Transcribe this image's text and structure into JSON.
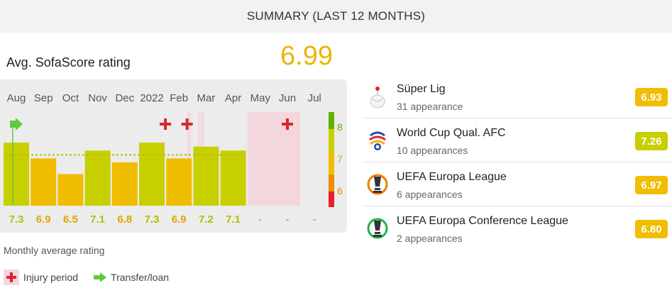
{
  "header": {
    "title": "SUMMARY (LAST 12 MONTHS)"
  },
  "summary": {
    "avg_label": "Avg. SofaScore rating",
    "avg_value": "6.99"
  },
  "chart_data": {
    "type": "bar",
    "categories": [
      "Aug",
      "Sep",
      "Oct",
      "Nov",
      "Dec",
      "2022",
      "Feb",
      "Mar",
      "Apr",
      "May",
      "Jun",
      "Jul"
    ],
    "values": [
      7.3,
      6.9,
      6.5,
      7.1,
      6.8,
      7.3,
      6.9,
      7.2,
      7.1,
      null,
      null,
      null
    ],
    "value_labels": [
      "7.3",
      "6.9",
      "6.5",
      "7.1",
      "6.8",
      "7.3",
      "6.9",
      "7.2",
      "7.1",
      "-",
      "-",
      "-"
    ],
    "average": 6.99,
    "scale_labels": [
      "8",
      "7",
      "6"
    ],
    "ylim": [
      5.7,
      8.4
    ],
    "injury_markers": [
      5.5,
      6.3,
      10
    ],
    "injury_periods": [
      [
        9,
        11
      ]
    ],
    "transfer_markers": [
      0
    ],
    "colors": {
      "green_yellow": "#c7cf00",
      "yellow": "#f0bd00",
      "orange": "#f08c00",
      "red": "#e3222c",
      "green": "#5cb400",
      "injury_cross": "#d9262c",
      "injury_bg": "#f3d7dc",
      "transfer_arrow": "#5ecb3c"
    }
  },
  "footer": {
    "monthly_label": "Monthly average rating"
  },
  "legend": {
    "injury_label": "Injury period",
    "transfer_label": "Transfer/loan"
  },
  "competitions": [
    {
      "name": "Süper Lig",
      "appearances": "31 appearance",
      "rating": "6.93",
      "color": "#f0bd00",
      "icon": "super-lig-logo"
    },
    {
      "name": "World Cup Qual. AFC",
      "appearances": "10 appearances",
      "rating": "7.26",
      "color": "#c7cf00",
      "icon": "world-cup-qual-afc-logo"
    },
    {
      "name": "UEFA Europa League",
      "appearances": "6 appearances",
      "rating": "6.97",
      "color": "#f0bd00",
      "icon": "uefa-europa-league-logo"
    },
    {
      "name": "UEFA Europa Conference League",
      "appearances": "2 appearances",
      "rating": "6.80",
      "color": "#f0bd00",
      "icon": "uefa-europa-conference-league-logo"
    }
  ]
}
